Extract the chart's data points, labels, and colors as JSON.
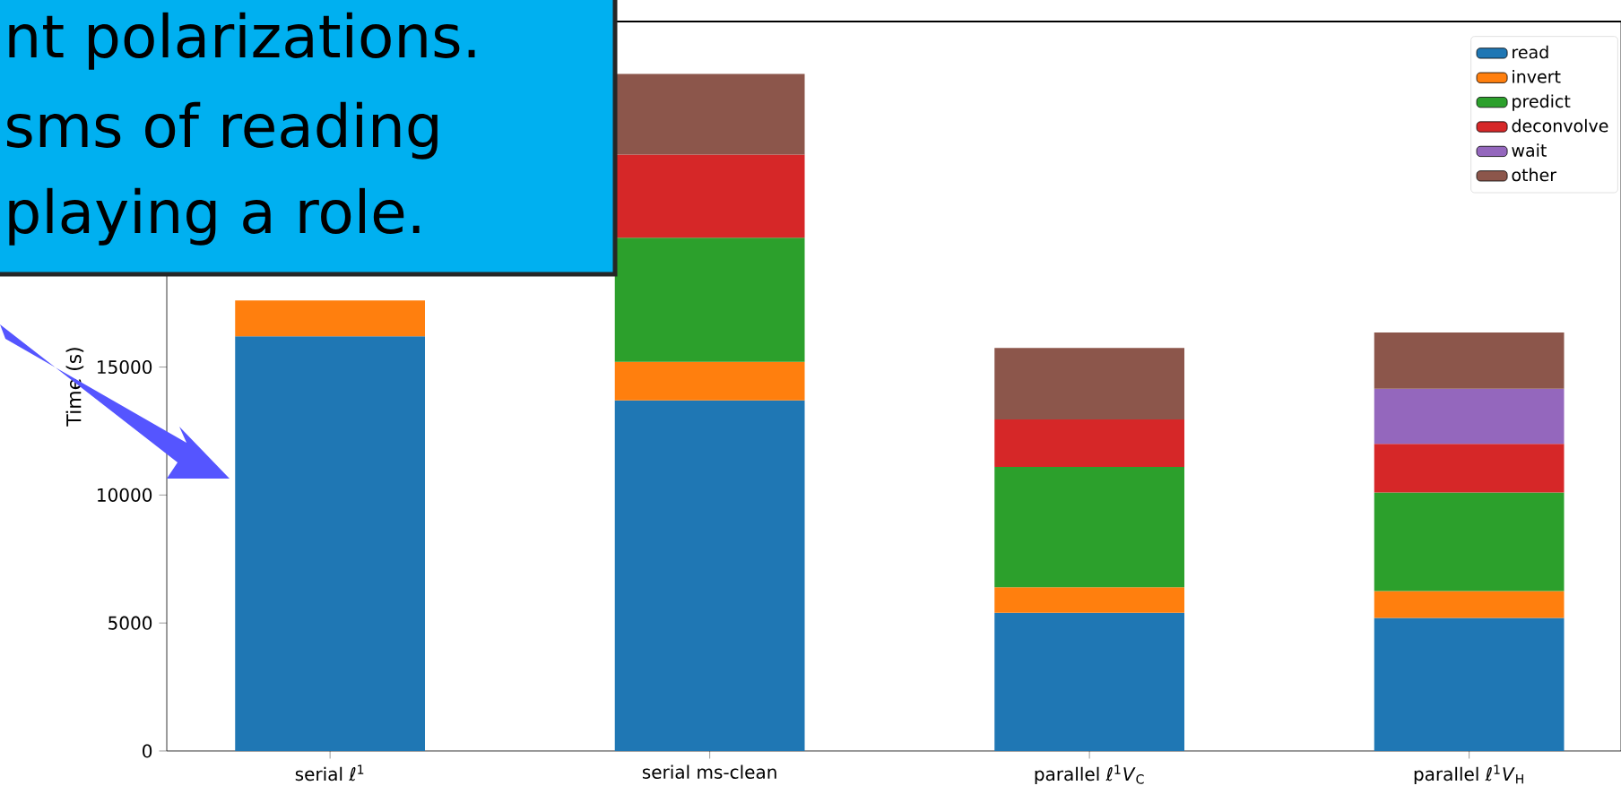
{
  "chart_data": {
    "type": "bar",
    "stacked": true,
    "ylabel": "Time (s)",
    "categories": [
      "serial ℓ$^{1}$",
      "serial ms-clean",
      "parallel ℓ$^{1}$*V*$_{C}$",
      "parallel ℓ$^{1}$*V*$_{H}$"
    ],
    "series": [
      {
        "name": "read",
        "color": "#1f77b4",
        "values": [
          16200,
          13700,
          5400,
          5200
        ]
      },
      {
        "name": "invert",
        "color": "#ff7f0e",
        "values": [
          1400,
          1500,
          1000,
          1050
        ]
      },
      {
        "name": "predict",
        "color": "#2ca02c",
        "values": [
          null,
          4850,
          4700,
          3850
        ]
      },
      {
        "name": "deconvolve",
        "color": "#d62728",
        "values": [
          null,
          3250,
          1850,
          1900
        ]
      },
      {
        "name": "wait",
        "color": "#9467bd",
        "values": [
          null,
          0,
          0,
          2150
        ]
      },
      {
        "name": "other",
        "color": "#8c564b",
        "values": [
          null,
          3150,
          2800,
          2200
        ]
      }
    ],
    "ylim": [
      0,
      28500
    ],
    "yticks": [
      0,
      5000,
      10000,
      15000
    ],
    "legend": "top right",
    "annotations": [
      "nt polarizations.",
      "sms of reading",
      "playing a role."
    ]
  }
}
